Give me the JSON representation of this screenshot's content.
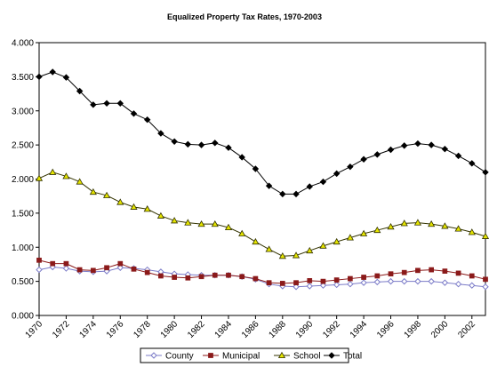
{
  "chart_data": {
    "type": "line",
    "title": "Equalized Property Tax Rates, 1970-2003",
    "xlabel": "",
    "ylabel": "",
    "ylim": [
      0,
      4
    ],
    "yticks": [
      "0.000",
      "0.500",
      "1.000",
      "1.500",
      "2.000",
      "2.500",
      "3.000",
      "3.500",
      "4.000"
    ],
    "xticks": [
      "1970",
      "1972",
      "1974",
      "1976",
      "1978",
      "1980",
      "1982",
      "1984",
      "1986",
      "1988",
      "1990",
      "1992",
      "1994",
      "1996",
      "1998",
      "2000",
      "2002"
    ],
    "x": [
      1970,
      1971,
      1972,
      1973,
      1974,
      1975,
      1976,
      1977,
      1978,
      1979,
      1980,
      1981,
      1982,
      1983,
      1984,
      1985,
      1986,
      1987,
      1988,
      1989,
      1990,
      1991,
      1992,
      1993,
      1994,
      1995,
      1996,
      1997,
      1998,
      1999,
      2000,
      2001,
      2002,
      2003
    ],
    "grid": true,
    "legend": "bottom",
    "series": [
      {
        "name": "County",
        "color": "#7b7bc8",
        "marker": "diamond-open",
        "values": [
          0.67,
          0.71,
          0.69,
          0.65,
          0.64,
          0.65,
          0.7,
          0.69,
          0.67,
          0.64,
          0.61,
          0.6,
          0.59,
          0.59,
          0.59,
          0.57,
          0.53,
          0.46,
          0.43,
          0.42,
          0.43,
          0.44,
          0.45,
          0.46,
          0.48,
          0.49,
          0.5,
          0.5,
          0.5,
          0.5,
          0.48,
          0.46,
          0.44,
          0.42
        ]
      },
      {
        "name": "Municipal",
        "color": "#8b1a1a",
        "marker": "square",
        "values": [
          0.81,
          0.76,
          0.76,
          0.67,
          0.66,
          0.7,
          0.76,
          0.68,
          0.63,
          0.58,
          0.56,
          0.55,
          0.57,
          0.59,
          0.59,
          0.57,
          0.54,
          0.48,
          0.47,
          0.48,
          0.51,
          0.5,
          0.52,
          0.54,
          0.56,
          0.58,
          0.61,
          0.63,
          0.66,
          0.67,
          0.65,
          0.62,
          0.58,
          0.53
        ]
      },
      {
        "name": "School",
        "color": "#e5e500",
        "marker": "triangle-open",
        "values": [
          2.01,
          2.1,
          2.04,
          1.96,
          1.81,
          1.76,
          1.66,
          1.59,
          1.56,
          1.46,
          1.39,
          1.36,
          1.34,
          1.34,
          1.29,
          1.2,
          1.08,
          0.97,
          0.87,
          0.88,
          0.95,
          1.02,
          1.08,
          1.14,
          1.2,
          1.25,
          1.3,
          1.35,
          1.36,
          1.34,
          1.31,
          1.27,
          1.22,
          1.16
        ]
      },
      {
        "name": "Total",
        "color": "#000000",
        "marker": "diamond",
        "values": [
          3.5,
          3.57,
          3.49,
          3.29,
          3.09,
          3.11,
          3.11,
          2.96,
          2.87,
          2.67,
          2.55,
          2.51,
          2.5,
          2.53,
          2.46,
          2.32,
          2.15,
          1.9,
          1.78,
          1.78,
          1.89,
          1.96,
          2.08,
          2.18,
          2.29,
          2.36,
          2.43,
          2.49,
          2.52,
          2.5,
          2.44,
          2.34,
          2.23,
          2.1
        ]
      }
    ]
  }
}
